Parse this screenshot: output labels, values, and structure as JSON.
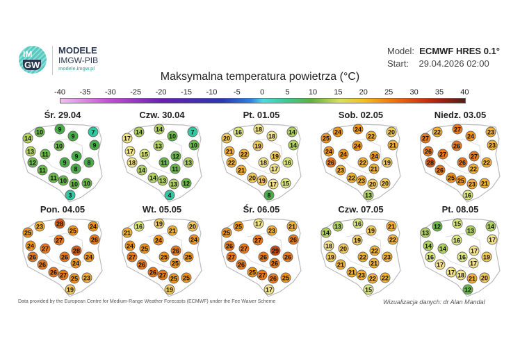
{
  "header": {
    "logo_text": "IMGW",
    "brand_title": "MODELE",
    "brand_subtitle": "IMGW-PIB",
    "brand_url": "modele.imgw.pl",
    "model_label": "Model:",
    "model_value": "ECMWF HRES 0.1°",
    "start_label": "Start:",
    "start_value": "29.04.2026 02:00"
  },
  "title": "Maksymalna temperatura powietrza (°C)",
  "colorbar": {
    "ticks": [
      "-40",
      "-35",
      "-30",
      "-25",
      "-20",
      "-15",
      "-10",
      "-5",
      "0",
      "5",
      "10",
      "15",
      "20",
      "25",
      "30",
      "35",
      "40"
    ]
  },
  "days": [
    {
      "label": "Śr. 29.04",
      "values": [
        14,
        10,
        9,
        7,
        9,
        9,
        13,
        10,
        11,
        9,
        12,
        9,
        8,
        8,
        11,
        11,
        10,
        10,
        10,
        3
      ]
    },
    {
      "label": "Czw. 30.04",
      "values": [
        17,
        14,
        14,
        7,
        10,
        10,
        17,
        13,
        15,
        12,
        18,
        11,
        13,
        11,
        14,
        14,
        13,
        13,
        12,
        4
      ]
    },
    {
      "label": "Pt. 01.05",
      "values": [
        20,
        16,
        18,
        14,
        18,
        14,
        21,
        19,
        22,
        19,
        22,
        18,
        16,
        17,
        21,
        20,
        19,
        17,
        15,
        8
      ]
    },
    {
      "label": "Sob. 02.05",
      "values": [
        25,
        24,
        24,
        20,
        22,
        21,
        24,
        24,
        24,
        24,
        26,
        22,
        19,
        21,
        23,
        22,
        23,
        20,
        20,
        13
      ]
    },
    {
      "label": "Niedz. 03.05",
      "values": [
        27,
        22,
        27,
        23,
        24,
        23,
        26,
        26,
        27,
        27,
        28,
        26,
        22,
        22,
        26,
        25,
        25,
        23,
        21,
        16
      ]
    },
    {
      "label": "Pon. 04.05",
      "values": [
        25,
        23,
        28,
        24,
        25,
        26,
        24,
        27,
        27,
        28,
        26,
        26,
        24,
        24,
        26,
        26,
        27,
        25,
        23,
        19
      ]
    },
    {
      "label": "Wt. 05.05",
      "values": [
        21,
        16,
        19,
        20,
        21,
        24,
        24,
        24,
        25,
        26,
        27,
        25,
        25,
        25,
        26,
        26,
        27,
        25,
        25,
        19
      ]
    },
    {
      "label": "Śr. 06.05",
      "values": [
        25,
        25,
        17,
        21,
        23,
        26,
        26,
        27,
        27,
        29,
        27,
        26,
        26,
        26,
        26,
        25,
        27,
        26,
        25,
        17
      ]
    },
    {
      "label": "Czw. 07.05",
      "values": [
        14,
        13,
        16,
        21,
        19,
        22,
        18,
        19,
        20,
        22,
        19,
        22,
        23,
        21,
        21,
        21,
        23,
        22,
        22,
        15
      ]
    },
    {
      "label": "Pt. 08.05",
      "values": [
        13,
        12,
        15,
        14,
        13,
        17,
        14,
        16,
        14,
        17,
        16,
        16,
        19,
        17,
        17,
        17,
        18,
        21,
        20,
        12
      ]
    }
  ],
  "footer": {
    "source": "Data provided by the European Centre for Medium-Range Weather Forecasts (ECMWF) under the Fee Waiver Scheme",
    "credit": "Wizualizacja danych: dr Alan Mandal"
  }
}
